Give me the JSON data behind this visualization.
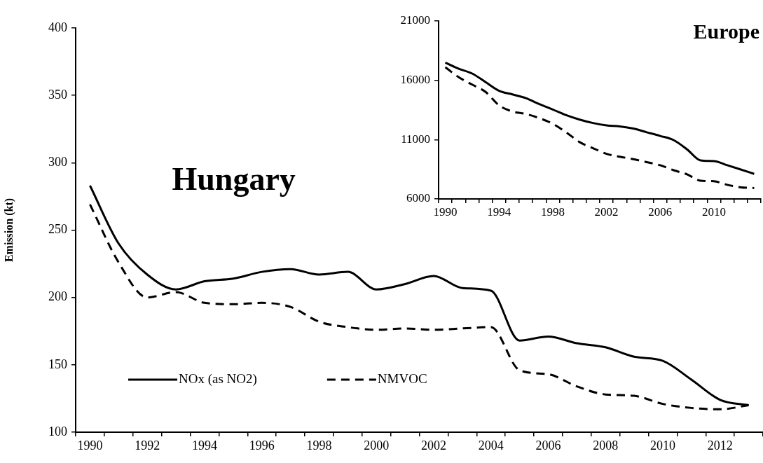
{
  "chart_data": [
    {
      "type": "line",
      "title": "Hungary",
      "ylabel": "Emission (kt)",
      "categories": [
        "1990",
        null,
        "1992",
        null,
        "1994",
        null,
        "1996",
        null,
        "1998",
        null,
        "2000",
        null,
        "2002",
        null,
        "2004",
        null,
        "2006",
        null,
        "2008",
        null,
        "2010",
        null,
        "2012",
        null
      ],
      "ylim": [
        100,
        400
      ],
      "yticks": [
        100,
        150,
        200,
        250,
        300,
        350,
        400
      ],
      "legend": "bottom left",
      "marker": "none",
      "series": [
        {
          "name": "NOx (as NO2)",
          "color": "#000000",
          "line_style": "solid",
          "values": [
            283,
            240,
            217,
            206,
            212,
            214,
            219,
            221,
            217,
            219,
            206,
            210,
            216,
            207,
            205,
            168,
            171,
            166,
            163,
            156,
            153,
            139,
            124,
            120
          ]
        },
        {
          "name": "NMVOC",
          "color": "#000000",
          "line_style": "dashed",
          "values": [
            269,
            226,
            200,
            204,
            196,
            195,
            196,
            193,
            182,
            178,
            176,
            177,
            176,
            177,
            178,
            146,
            143,
            134,
            128,
            127,
            121,
            118,
            117,
            120
          ]
        }
      ]
    },
    {
      "type": "line",
      "title": "Europe",
      "categories": [
        "1990",
        null,
        null,
        null,
        "1994",
        null,
        null,
        null,
        "1998",
        null,
        null,
        null,
        "2002",
        null,
        null,
        null,
        "2006",
        null,
        null,
        null,
        "2010",
        null,
        null,
        null
      ],
      "ylim": [
        6000,
        21000
      ],
      "yticks": [
        6000,
        11000,
        16000,
        21000
      ],
      "marker": "none",
      "series": [
        {
          "color": "#000000",
          "line_style": "solid",
          "values": [
            17500,
            16980,
            16570,
            15850,
            15120,
            14810,
            14500,
            13990,
            13540,
            13060,
            12690,
            12400,
            12200,
            12110,
            11930,
            11620,
            11310,
            10960,
            10180,
            9250,
            9190,
            8840,
            8480,
            8110
          ]
        },
        {
          "color": "#000000",
          "line_style": "dashed",
          "values": [
            17100,
            16260,
            15640,
            15020,
            13890,
            13370,
            13160,
            12810,
            12340,
            11620,
            10790,
            10280,
            9800,
            9560,
            9350,
            9100,
            8840,
            8420,
            8070,
            7540,
            7490,
            7190,
            6980,
            6920
          ]
        }
      ]
    }
  ]
}
